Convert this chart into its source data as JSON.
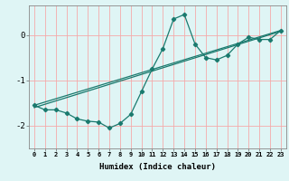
{
  "xlabel": "Humidex (Indice chaleur)",
  "background_color": "#dff5f5",
  "line_color": "#1a7a6e",
  "grid_color": "#f5aaaa",
  "xlim": [
    -0.5,
    23.5
  ],
  "ylim": [
    -2.5,
    0.65
  ],
  "xtick_labels": [
    "0",
    "1",
    "2",
    "3",
    "4",
    "5",
    "6",
    "7",
    "8",
    "9",
    "10",
    "11",
    "12",
    "13",
    "14",
    "15",
    "16",
    "17",
    "18",
    "19",
    "20",
    "21",
    "22",
    "23"
  ],
  "ytick_values": [
    -2,
    -1,
    0
  ],
  "series1_x": [
    0,
    1,
    2,
    3,
    4,
    5,
    6,
    7,
    8,
    9,
    10,
    11,
    12,
    13,
    14,
    15,
    16,
    17,
    18,
    19,
    20,
    21,
    22,
    23
  ],
  "series1_y": [
    -1.55,
    -1.65,
    -1.65,
    -1.72,
    -1.85,
    -1.9,
    -1.92,
    -2.05,
    -1.95,
    -1.75,
    -1.25,
    -0.75,
    -0.3,
    0.35,
    0.45,
    -0.2,
    -0.5,
    -0.55,
    -0.45,
    -0.2,
    -0.05,
    -0.1,
    -0.1,
    0.1
  ],
  "series2_x": [
    0,
    23
  ],
  "series2_y": [
    -1.55,
    0.1
  ],
  "series3_x": [
    0,
    23
  ],
  "series3_y": [
    -1.6,
    0.08
  ]
}
